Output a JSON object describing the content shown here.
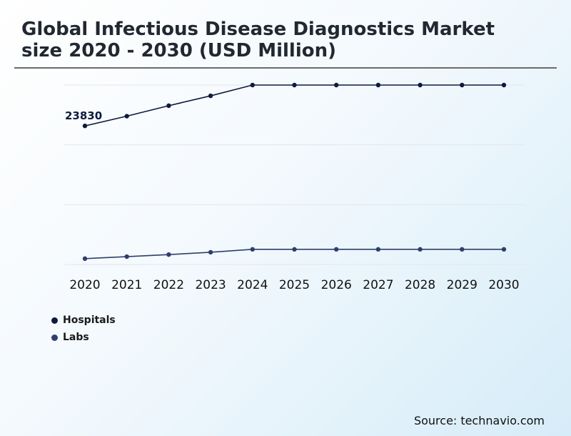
{
  "title_line1": "Global Infectious Disease Diagnostics Market",
  "title_line2": "size 2020 - 2030 (USD Million)",
  "source": {
    "label": "Source:",
    "value": "technavio.com"
  },
  "colors": {
    "hospitals": "#0d1b3e",
    "labs": "#2f3f6b",
    "grid": "#e3e6ea"
  },
  "chart_data": {
    "type": "line",
    "title": "Global Infectious Disease Diagnostics Market size 2020 - 2030 (USD Million)",
    "x": [
      "2020",
      "2021",
      "2022",
      "2023",
      "2024",
      "2025",
      "2026",
      "2027",
      "2028",
      "2029",
      "2030"
    ],
    "series": [
      {
        "name": "Hospitals",
        "values": [
          23830,
          25500,
          27300,
          29000,
          30850,
          30850,
          30850,
          30850,
          30850,
          30850,
          30850
        ]
      },
      {
        "name": "Labs",
        "values": [
          1000,
          1350,
          1700,
          2100,
          2600,
          2600,
          2600,
          2600,
          2600,
          2600,
          2600
        ]
      }
    ],
    "annotations": [
      {
        "series": 0,
        "index": 0,
        "text": "23830"
      }
    ],
    "ylim": [
      0,
      30850
    ],
    "grid": true,
    "legend_position": "bottom-left"
  }
}
